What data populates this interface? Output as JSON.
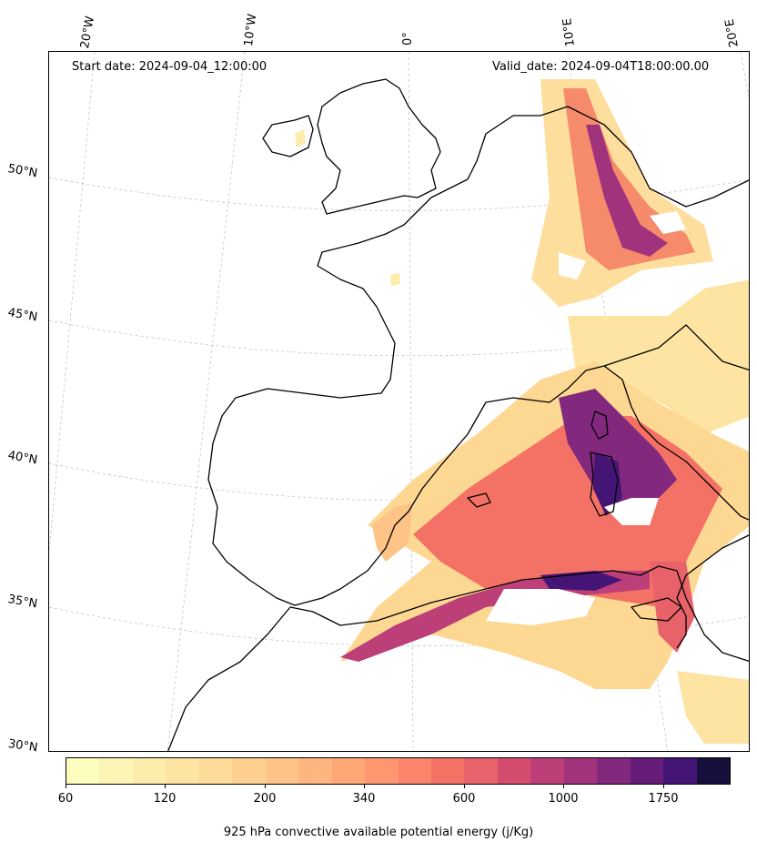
{
  "header": {
    "start_date": "Start date: 2024-09-04_12:00:00",
    "valid_date": "Valid_date: 2024-09-04T18:00:00.00"
  },
  "grid": {
    "lon_labels": [
      "20°W",
      "10°W",
      "0°",
      "10°E",
      "20°E"
    ],
    "lat_labels": [
      "50°N",
      "45°N",
      "40°N",
      "35°N",
      "30°N"
    ]
  },
  "colorbar": {
    "title": "925 hPa convective available potential energy (j/Kg)",
    "tick_labels": [
      "60",
      "120",
      "200",
      "340",
      "600",
      "1000",
      "1750"
    ],
    "colors": [
      "#fcfdbf",
      "#fcf5b6",
      "#fcedac",
      "#fde4a2",
      "#fedb98",
      "#fed08f",
      "#fec487",
      "#feb67e",
      "#fea876",
      "#fe9770",
      "#fa856a",
      "#f47265",
      "#e8626a",
      "#d44d6f",
      "#bd3f78",
      "#a1337d",
      "#82287d",
      "#661d7a",
      "#451575",
      "#170f3c"
    ]
  }
}
